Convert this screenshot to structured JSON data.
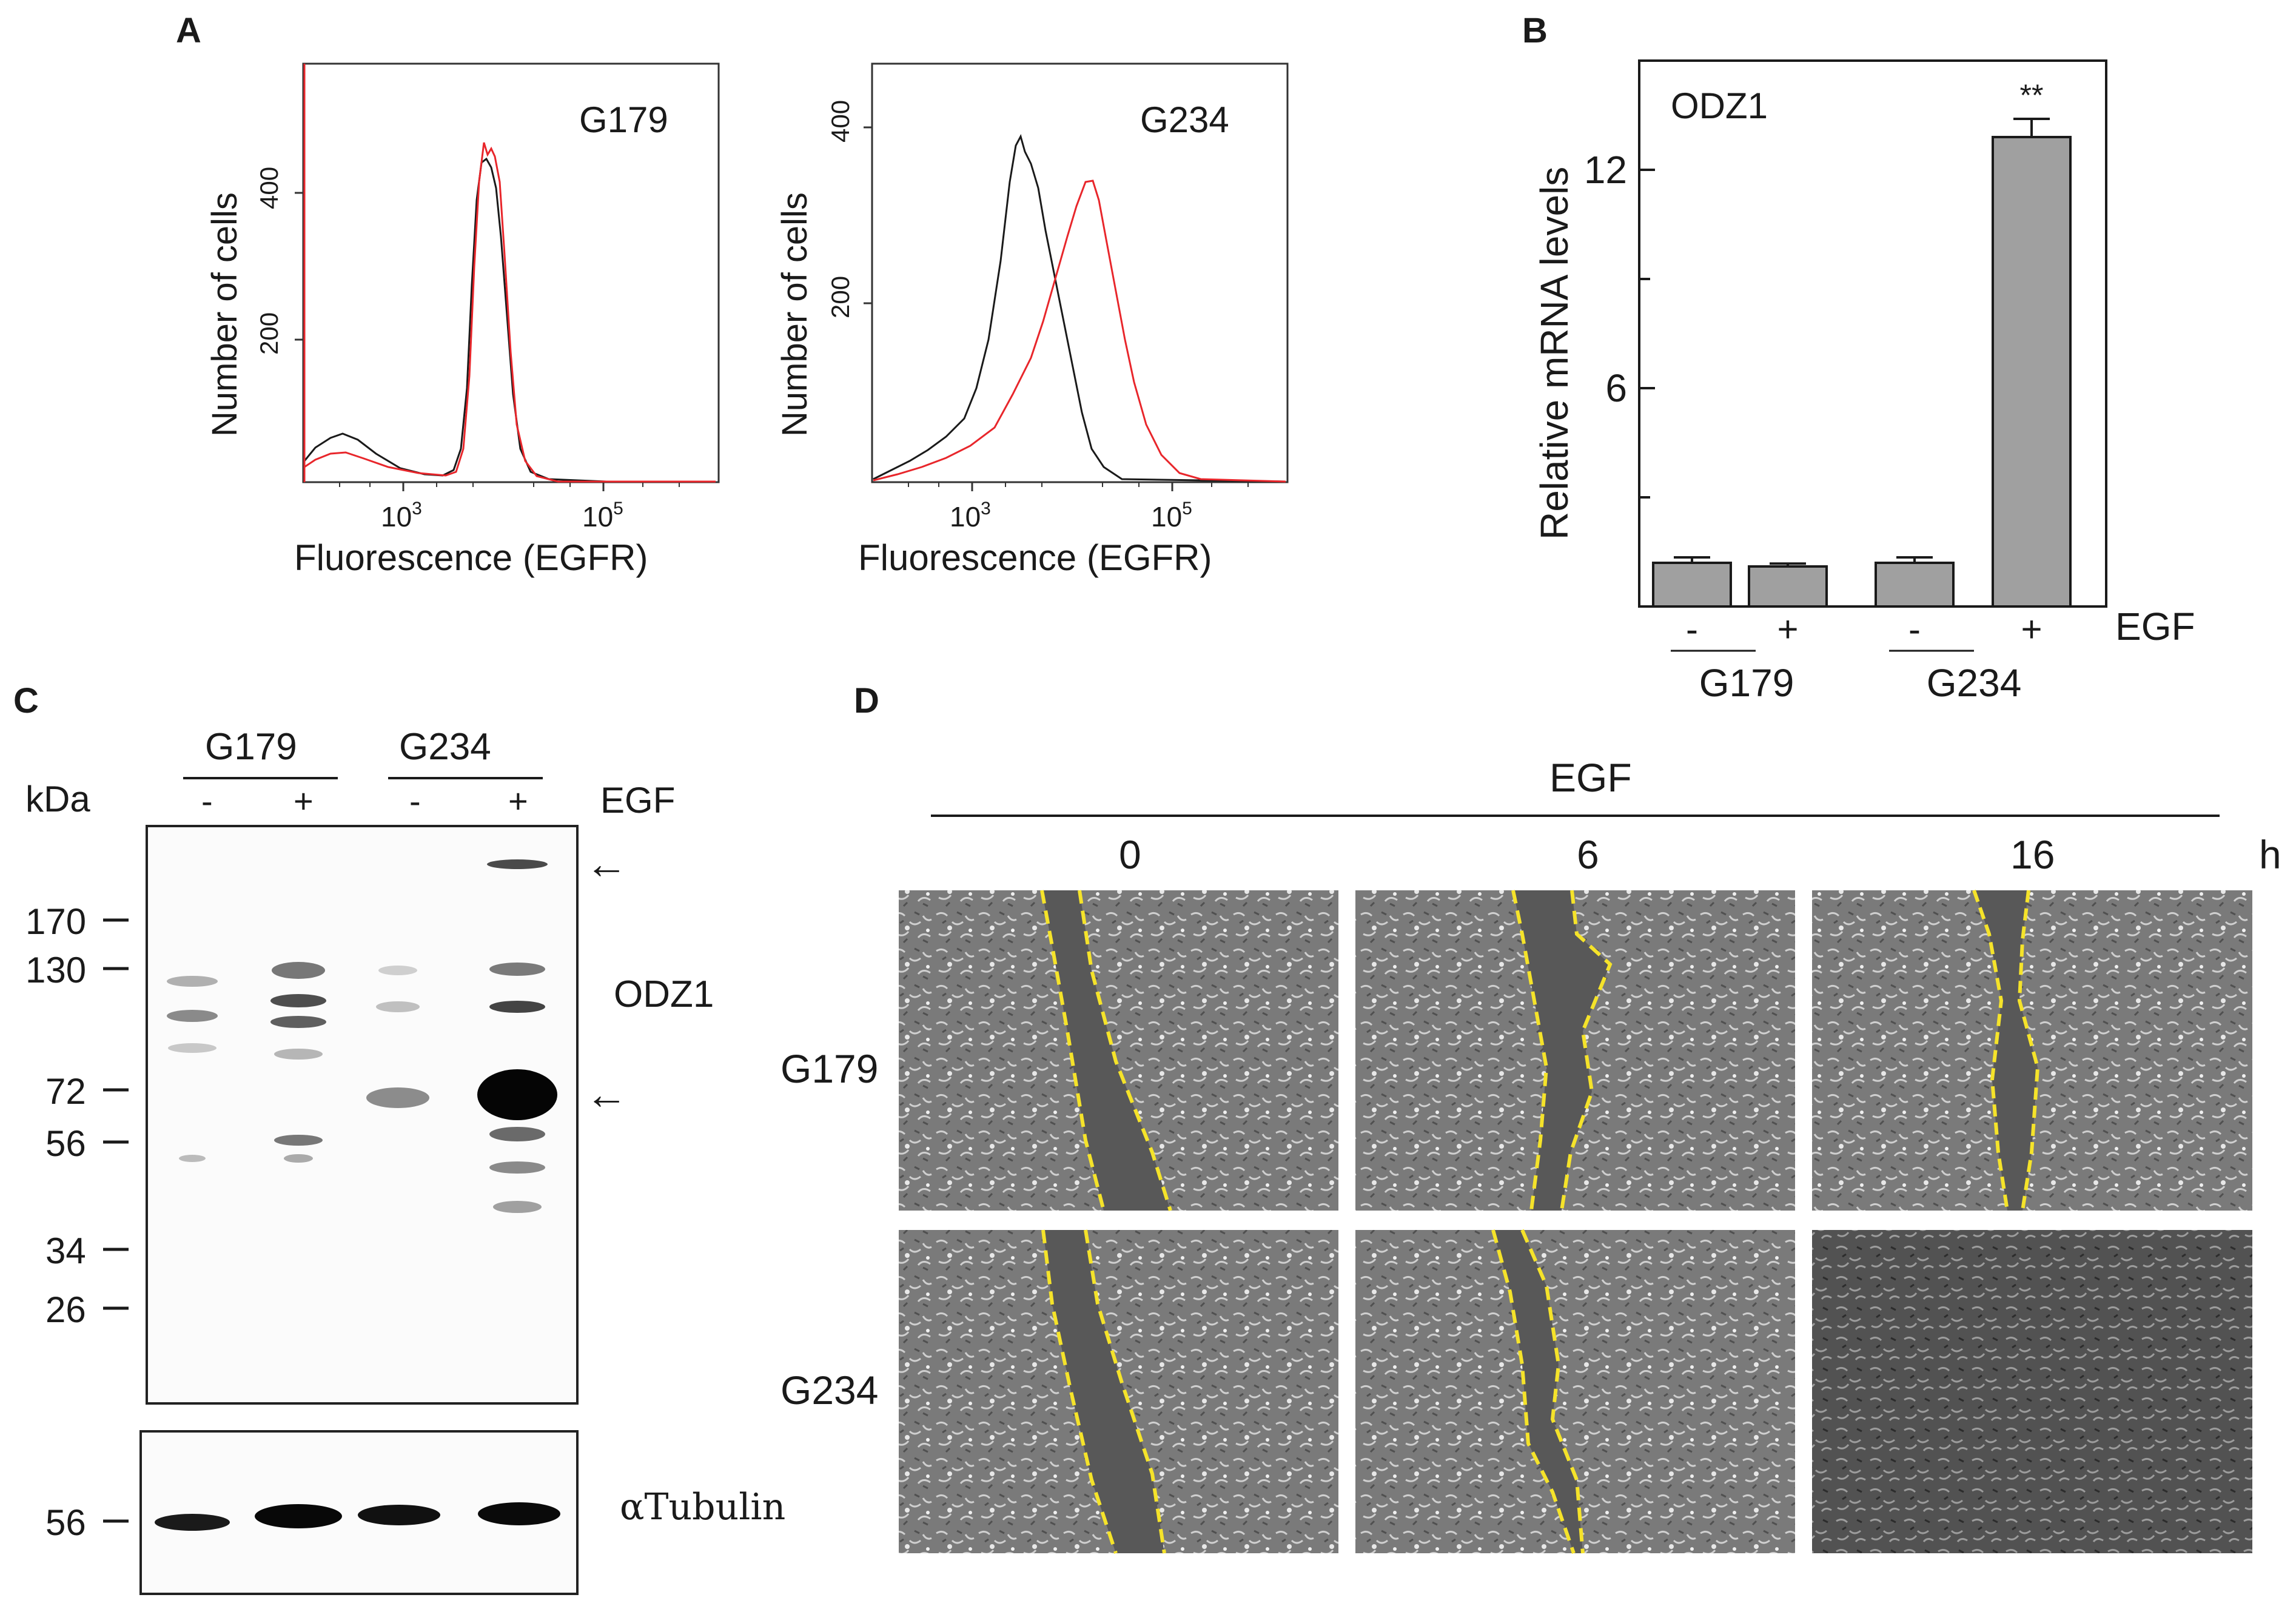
{
  "panels": {
    "A": {
      "letter": "A",
      "x_label": "Fluorescence (EGFR)",
      "y_label": "Number of cells",
      "hist_G179": {
        "title": "G179",
        "yticks": [
          "200",
          "400"
        ],
        "xticks": [
          {
            "base": "10",
            "exp": "3"
          },
          {
            "base": "10",
            "exp": "5"
          }
        ]
      },
      "hist_G234": {
        "title": "G234",
        "yticks": [
          "200",
          "400"
        ],
        "xticks": [
          {
            "base": "10",
            "exp": "3"
          },
          {
            "base": "10",
            "exp": "5"
          }
        ]
      }
    },
    "B": {
      "letter": "B"
    },
    "C": {
      "letter": "C",
      "kda_label": "kDa",
      "groups": [
        "G179",
        "G234"
      ],
      "lane_signs": [
        "-",
        "+",
        "-",
        "+"
      ],
      "egf_label": "EGF",
      "markers": [
        "170",
        "130",
        "72",
        "56",
        "34",
        "26"
      ],
      "tubulin_marker": "56",
      "protein_label": "ODZ1",
      "tubulin_label": "αTubulin",
      "arrow_symbol": "←"
    },
    "D": {
      "letter": "D",
      "egf_label": "EGF",
      "timepoints": [
        "0",
        "6",
        "16"
      ],
      "time_unit": "h",
      "rows": [
        "G179",
        "G234"
      ]
    }
  },
  "chart_data": {
    "type": "bar",
    "title": "ODZ1",
    "ylabel": "Relative mRNA levels",
    "xlabel": "",
    "ylim": [
      0,
      15
    ],
    "yticks": [
      6,
      12
    ],
    "categories": [
      "G179 -",
      "G179 +",
      "G234 -",
      "G234 +"
    ],
    "groups": [
      "G179",
      "G234"
    ],
    "egf": [
      "-",
      "+",
      "-",
      "+"
    ],
    "egf_label": "EGF",
    "values": [
      1.2,
      1.1,
      1.2,
      12.9
    ],
    "errors": [
      0.15,
      0.08,
      0.15,
      0.5
    ],
    "significance": [
      "",
      "",
      "",
      "**"
    ],
    "colors": {
      "bar": "#a0a0a0",
      "line_black": "#1a1a1a",
      "line_red": "#e8262b",
      "wound": "#f5e32a"
    }
  }
}
